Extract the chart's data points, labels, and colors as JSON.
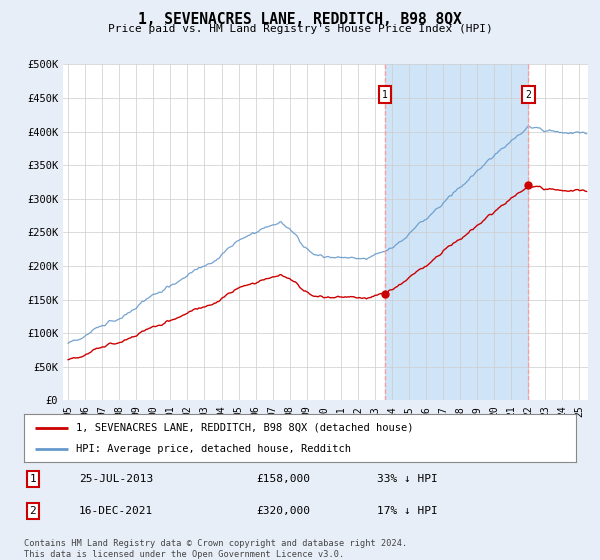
{
  "title": "1, SEVENACRES LANE, REDDITCH, B98 8QX",
  "subtitle": "Price paid vs. HM Land Registry's House Price Index (HPI)",
  "background_color": "#e8eef7",
  "plot_bg_color": "#ffffff",
  "legend_line1": "1, SEVENACRES LANE, REDDITCH, B98 8QX (detached house)",
  "legend_line2": "HPI: Average price, detached house, Redditch",
  "footer": "Contains HM Land Registry data © Crown copyright and database right 2024.\nThis data is licensed under the Open Government Licence v3.0.",
  "annotation1": {
    "label": "1",
    "date": "25-JUL-2013",
    "price": 158000,
    "pct": "33% ↓ HPI"
  },
  "annotation2": {
    "label": "2",
    "date": "16-DEC-2021",
    "price": 320000,
    "pct": "17% ↓ HPI"
  },
  "ylim": [
    0,
    500000
  ],
  "yticks": [
    0,
    50000,
    100000,
    150000,
    200000,
    250000,
    300000,
    350000,
    400000,
    450000,
    500000
  ],
  "red_line_color": "#cc0000",
  "blue_line_color": "#6699cc",
  "shade_color": "#d0e4f7",
  "grid_color": "#cccccc",
  "vline_color": "#ff9999"
}
